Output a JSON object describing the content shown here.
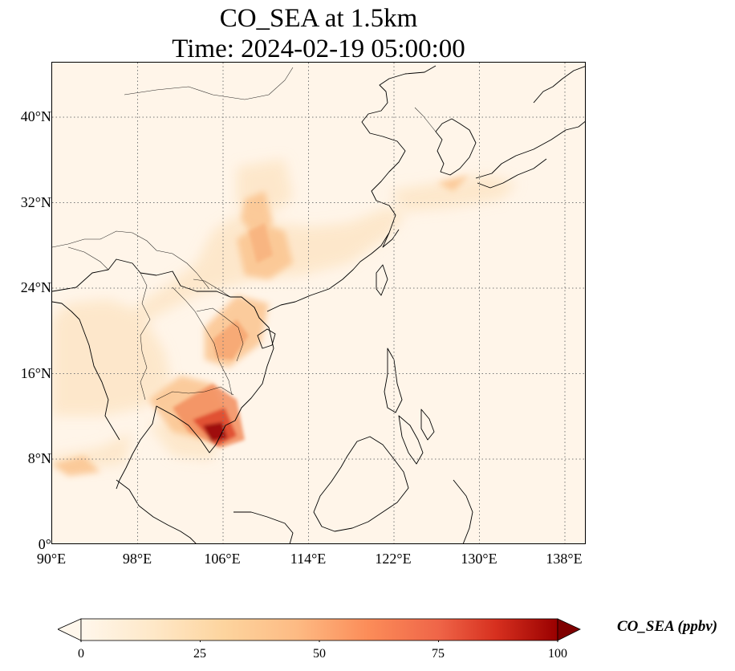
{
  "title": {
    "line1": "CO_SEA at 1.5km",
    "line2": "Time: 2024-02-19 05:00:00"
  },
  "map": {
    "projection": "PlateCarree",
    "lon_range": [
      90,
      140
    ],
    "lat_range": [
      0,
      45
    ],
    "lat_ticks": [
      "0°",
      "8°N",
      "16°N",
      "24°N",
      "32°N",
      "40°N"
    ],
    "lon_ticks": [
      "90°E",
      "98°E",
      "106°E",
      "114°E",
      "122°E",
      "130°E",
      "138°E"
    ],
    "gridlines": true,
    "gridline_style": "dotted",
    "colormap": "OrRd",
    "colors": {
      "low": "#fff7ec",
      "mid": "#fc8d59",
      "high": "#7f0000",
      "background": "#fff5e9"
    }
  },
  "colorbar": {
    "label": "CO_SEA (ppbv)",
    "ticks": [
      "0",
      "25",
      "50",
      "75",
      "100"
    ],
    "min": 0,
    "max": 100,
    "extend": "both"
  }
}
